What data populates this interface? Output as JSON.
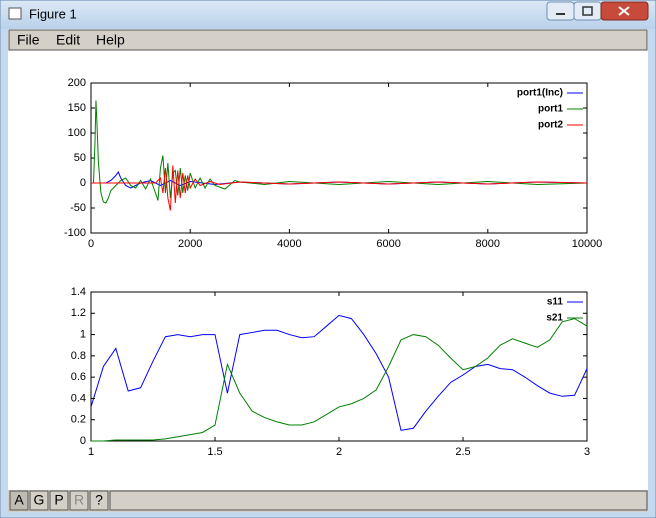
{
  "window": {
    "title": "Figure 1",
    "menu": [
      "File",
      "Edit",
      "Help"
    ],
    "toolbar": [
      "A",
      "G",
      "P",
      "R",
      "?"
    ]
  },
  "chart_data": [
    {
      "type": "line",
      "xlim": [
        0,
        10000
      ],
      "ylim": [
        -100,
        200
      ],
      "xticks": [
        0,
        2000,
        4000,
        6000,
        8000,
        10000
      ],
      "yticks": [
        -100,
        -50,
        0,
        50,
        100,
        150,
        200
      ],
      "legend": "top-right",
      "series": [
        {
          "name": "port1(Inc)",
          "color": "#0000ff",
          "x": [
            0,
            100,
            200,
            300,
            400,
            500,
            550,
            600,
            700,
            800,
            900,
            1000,
            1200,
            1400,
            1600,
            1800,
            2000,
            2500,
            3000,
            4000,
            5000,
            6000,
            7000,
            8000,
            9000,
            10000
          ],
          "values": [
            0,
            0,
            0,
            0,
            5,
            15,
            22,
            10,
            -5,
            -10,
            -5,
            0,
            5,
            -5,
            5,
            -5,
            3,
            -3,
            2,
            -2,
            2,
            -2,
            2,
            -2,
            2,
            0
          ]
        },
        {
          "name": "port1",
          "color": "#008000",
          "x": [
            0,
            50,
            80,
            100,
            120,
            150,
            200,
            250,
            300,
            350,
            400,
            500,
            600,
            700,
            800,
            900,
            1000,
            1100,
            1200,
            1300,
            1350,
            1400,
            1450,
            1500,
            1550,
            1600,
            1650,
            1700,
            1750,
            1800,
            1850,
            1900,
            1950,
            2000,
            2100,
            2200,
            2300,
            2400,
            2500,
            2700,
            2900,
            3000,
            3500,
            4000,
            5000,
            6000,
            7000,
            8000,
            9000,
            10000
          ],
          "values": [
            0,
            0,
            80,
            165,
            120,
            40,
            -20,
            -38,
            -40,
            -30,
            -15,
            -5,
            5,
            10,
            -5,
            -10,
            5,
            -12,
            8,
            -20,
            -35,
            30,
            55,
            -20,
            40,
            -30,
            20,
            25,
            -25,
            30,
            -20,
            15,
            -15,
            20,
            -10,
            10,
            -10,
            8,
            -5,
            -12,
            5,
            2,
            -3,
            3,
            -3,
            3,
            -3,
            3,
            -3,
            0
          ]
        },
        {
          "name": "port2",
          "color": "#ff0000",
          "x": [
            0,
            1000,
            1300,
            1400,
            1450,
            1500,
            1550,
            1600,
            1650,
            1700,
            1750,
            1800,
            1850,
            1900,
            1950,
            2000,
            2100,
            2200,
            2400,
            2600,
            3000,
            4000,
            5000,
            6000,
            7000,
            8000,
            9000,
            10000
          ],
          "values": [
            0,
            0,
            0,
            10,
            -20,
            30,
            -30,
            -55,
            35,
            -40,
            25,
            -30,
            20,
            -20,
            15,
            -10,
            8,
            -5,
            3,
            -3,
            2,
            -2,
            2,
            -2,
            2,
            -2,
            2,
            0
          ]
        }
      ]
    },
    {
      "type": "line",
      "xlim": [
        1,
        3
      ],
      "ylim": [
        0,
        1.4
      ],
      "xticks": [
        1,
        1.5,
        2,
        2.5,
        3
      ],
      "yticks": [
        0,
        0.2,
        0.4,
        0.6,
        0.8,
        1,
        1.2,
        1.4
      ],
      "legend": "top-right",
      "x": [
        1,
        1.05,
        1.1,
        1.15,
        1.2,
        1.25,
        1.3,
        1.35,
        1.4,
        1.45,
        1.5,
        1.55,
        1.6,
        1.65,
        1.7,
        1.75,
        1.8,
        1.85,
        1.9,
        1.95,
        2,
        2.05,
        2.1,
        2.15,
        2.2,
        2.25,
        2.3,
        2.35,
        2.4,
        2.45,
        2.5,
        2.55,
        2.6,
        2.65,
        2.7,
        2.75,
        2.8,
        2.85,
        2.9,
        2.95,
        3
      ],
      "series": [
        {
          "name": "s11",
          "color": "#0000ff",
          "values": [
            0.32,
            0.7,
            0.87,
            0.47,
            0.5,
            0.75,
            0.98,
            1.0,
            0.98,
            1.0,
            1.0,
            0.45,
            1.0,
            1.02,
            1.04,
            1.04,
            1.0,
            0.97,
            0.98,
            1.08,
            1.18,
            1.15,
            1.0,
            0.82,
            0.6,
            0.1,
            0.12,
            0.28,
            0.42,
            0.55,
            0.62,
            0.7,
            0.72,
            0.68,
            0.67,
            0.6,
            0.52,
            0.45,
            0.42,
            0.43,
            0.68
          ]
        },
        {
          "name": "s21",
          "color": "#008000",
          "values": [
            0,
            0,
            0.01,
            0.01,
            0.01,
            0.01,
            0.02,
            0.04,
            0.06,
            0.08,
            0.15,
            0.72,
            0.45,
            0.28,
            0.22,
            0.18,
            0.15,
            0.15,
            0.18,
            0.25,
            0.32,
            0.35,
            0.4,
            0.48,
            0.7,
            0.95,
            1.0,
            0.98,
            0.9,
            0.78,
            0.67,
            0.7,
            0.78,
            0.9,
            0.96,
            0.92,
            0.88,
            0.95,
            1.12,
            1.15,
            1.08
          ]
        }
      ]
    }
  ]
}
